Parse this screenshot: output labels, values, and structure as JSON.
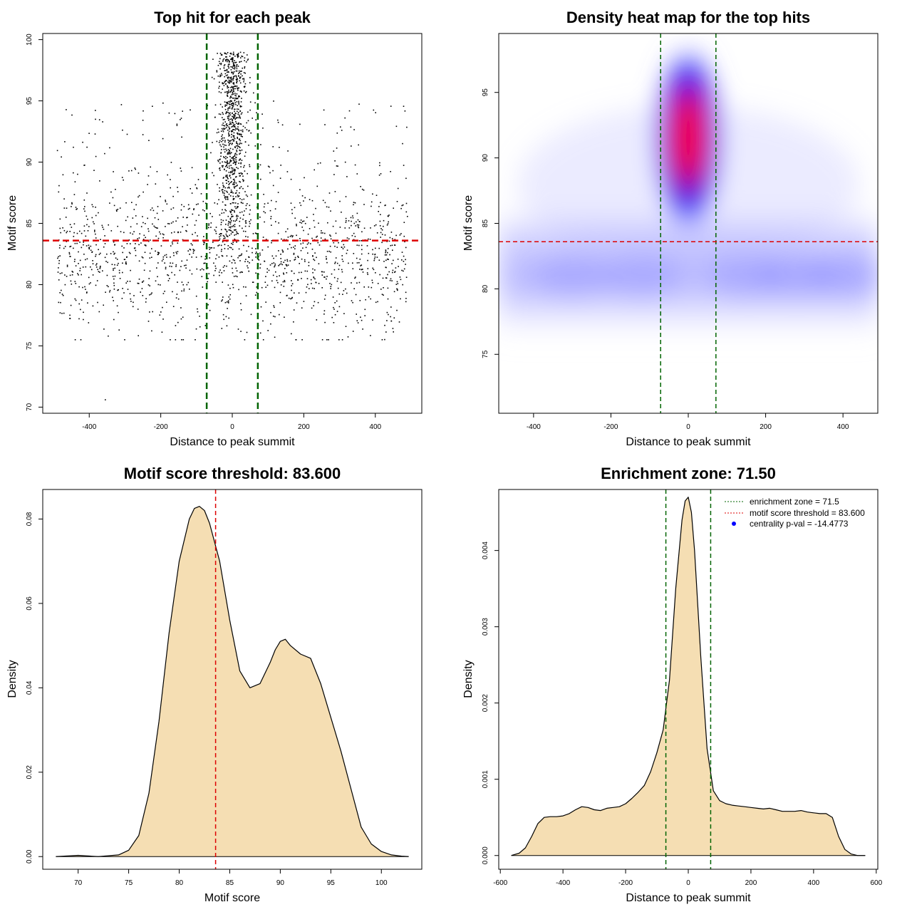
{
  "chart_data": [
    {
      "type": "scatter",
      "title": "Top hit for each peak",
      "xlabel": "Distance to peak summit",
      "ylabel": "Motif score",
      "xlim": [
        -530,
        530
      ],
      "ylim": [
        69.5,
        100.5
      ],
      "xticks": [
        -400,
        -200,
        0,
        200,
        400
      ],
      "yticks": [
        70,
        75,
        80,
        85,
        90,
        95,
        100
      ],
      "grid": false,
      "vlines": [
        -71.5,
        71.5
      ],
      "hline": 83.6,
      "colors": {
        "points": "#000000",
        "vline": "#006400",
        "hline": "#dd0000"
      },
      "points_summary": {
        "background_x_range": [
          -490,
          490
        ],
        "background_y_mean": 82,
        "background_y_sd": 2.8,
        "central_cluster_x_sd": 20,
        "central_cluster_y_range": [
          83,
          99
        ]
      }
    },
    {
      "type": "heatmap",
      "title": "Density heat map for the top hits",
      "xlabel": "Distance to peak summit",
      "ylabel": "Motif score",
      "xlim": [
        -490,
        490
      ],
      "ylim": [
        70.5,
        99.5
      ],
      "xticks": [
        -400,
        -200,
        0,
        200,
        400
      ],
      "yticks": [
        75,
        80,
        85,
        90,
        95
      ],
      "vlines": [
        -71.5,
        71.5
      ],
      "hline": 83.6,
      "colors": {
        "low": "#ffffff",
        "mid": "#0000ff",
        "high": "#ff0000",
        "vline": "#006400",
        "hline": "#dd0000"
      },
      "density_peak": {
        "x": 0,
        "y": 92
      }
    },
    {
      "type": "area",
      "title": "Motif score threshold: 83.600",
      "xlabel": "Motif score",
      "ylabel": "Density",
      "xlim": [
        66.5,
        104
      ],
      "ylim": [
        -0.003,
        0.087
      ],
      "xticks": [
        70,
        75,
        80,
        85,
        90,
        95,
        100
      ],
      "yticks": [
        0.0,
        0.02,
        0.04,
        0.06,
        0.08
      ],
      "ytick_labels": [
        "0.00",
        "0.02",
        "0.04",
        "0.06",
        "0.08"
      ],
      "threshold": 83.6,
      "colors": {
        "fill": "#f5deb3",
        "line": "#000000",
        "threshold": "#dd0000"
      },
      "x": [
        67.8,
        70,
        72,
        74,
        75,
        76,
        77,
        78,
        79,
        80,
        81,
        81.5,
        82,
        82.5,
        83,
        84,
        85,
        86,
        87,
        88,
        89,
        89.5,
        90,
        90.5,
        91,
        92,
        93,
        94,
        95,
        96,
        97,
        98,
        99,
        100,
        101,
        102,
        102.7
      ],
      "y": [
        0.0,
        0.0003,
        0.0,
        0.0004,
        0.0015,
        0.005,
        0.015,
        0.032,
        0.053,
        0.07,
        0.08,
        0.0825,
        0.083,
        0.082,
        0.079,
        0.07,
        0.056,
        0.044,
        0.04,
        0.041,
        0.046,
        0.049,
        0.051,
        0.0515,
        0.05,
        0.048,
        0.047,
        0.041,
        0.033,
        0.025,
        0.016,
        0.007,
        0.003,
        0.0012,
        0.0004,
        0.0001,
        0.0
      ]
    },
    {
      "type": "area",
      "title": "Enrichment zone: 71.50",
      "xlabel": "Distance to peak summit",
      "ylabel": "Density",
      "xlim": [
        -605,
        605
      ],
      "ylim": [
        -0.00018,
        0.0048
      ],
      "xticks": [
        -600,
        -400,
        -200,
        0,
        200,
        400,
        600
      ],
      "yticks": [
        0.0,
        0.001,
        0.002,
        0.003,
        0.004
      ],
      "ytick_labels": [
        "0.000",
        "0.001",
        "0.002",
        "0.003",
        "0.004"
      ],
      "vlines": [
        -71.5,
        71.5
      ],
      "colors": {
        "fill": "#f5deb3",
        "line": "#000000",
        "vline": "#006400"
      },
      "legend": [
        {
          "label": "enrichment zone = 71.5",
          "style": "dotted-line",
          "color": "#006400"
        },
        {
          "label": "motif score threshold = 83.600",
          "style": "dotted-line",
          "color": "#dd0000"
        },
        {
          "label": "centrality p-val = -14.4773",
          "style": "point",
          "color": "#0000ff"
        }
      ],
      "legend_position": "top-right",
      "x": [
        -565,
        -540,
        -520,
        -500,
        -480,
        -460,
        -440,
        -420,
        -400,
        -380,
        -360,
        -340,
        -320,
        -300,
        -280,
        -260,
        -240,
        -220,
        -200,
        -180,
        -160,
        -140,
        -120,
        -100,
        -80,
        -60,
        -40,
        -20,
        -10,
        0,
        10,
        20,
        40,
        60,
        80,
        100,
        120,
        140,
        160,
        180,
        200,
        220,
        240,
        260,
        280,
        300,
        320,
        340,
        360,
        380,
        400,
        420,
        440,
        460,
        480,
        500,
        520,
        540,
        565
      ],
      "y": [
        0.0,
        3e-05,
        0.0001,
        0.00025,
        0.00042,
        0.0005,
        0.00051,
        0.00051,
        0.00052,
        0.00055,
        0.0006,
        0.00064,
        0.00063,
        0.0006,
        0.00059,
        0.00062,
        0.00063,
        0.00064,
        0.00068,
        0.00075,
        0.00083,
        0.00092,
        0.0011,
        0.00135,
        0.00165,
        0.0023,
        0.0035,
        0.0044,
        0.00465,
        0.0047,
        0.0045,
        0.004,
        0.0026,
        0.0014,
        0.00085,
        0.00072,
        0.00068,
        0.00066,
        0.00065,
        0.00064,
        0.00063,
        0.00062,
        0.00061,
        0.00062,
        0.0006,
        0.00058,
        0.00058,
        0.00058,
        0.00059,
        0.00057,
        0.00056,
        0.00055,
        0.00055,
        0.0005,
        0.00025,
        8e-05,
        2e-05,
        0.0,
        0.0
      ]
    }
  ]
}
